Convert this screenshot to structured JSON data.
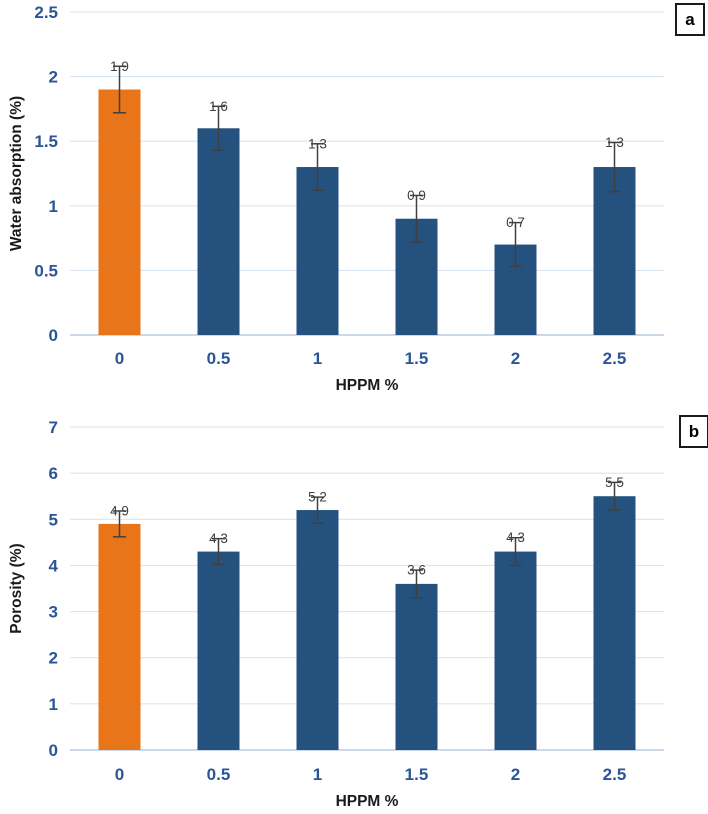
{
  "figure": {
    "description": "Two stacked vertical bar charts with error bars and data labels",
    "background": "#FFFFFF"
  },
  "colors": {
    "bar_blue": "#24517E",
    "bar_orange": "#E8751A",
    "axis_text_blue": "#2B5597",
    "axis_title_black": "#1A1A1A",
    "gridline": "#D9E5F3",
    "axis_line": "#B8CCE4",
    "data_label": "#3F3F3F",
    "error_bar": "#404040",
    "panel_border": "#1A1A1A",
    "panel_letter": "#000000"
  },
  "chart_data": [
    {
      "type": "bar",
      "panel_label": "a",
      "categories": [
        "0",
        "0.5",
        "1",
        "1.5",
        "2",
        "2.5"
      ],
      "values": [
        1.9,
        1.6,
        1.3,
        0.9,
        0.7,
        1.3
      ],
      "data_labels": [
        "1.9",
        "1.6",
        "1.3",
        "0.9",
        "0.7",
        "1.3"
      ],
      "error_bars": [
        0.18,
        0.17,
        0.18,
        0.18,
        0.17,
        0.19
      ],
      "highlight_index": 0,
      "xlabel": "HPPM %",
      "ylabel": "Water absorption (%)",
      "ylim": [
        0,
        2.5
      ],
      "yticks": [
        "0",
        "0.5",
        "1",
        "1.5",
        "2",
        "2.5"
      ],
      "grid": "horizontal",
      "legend": "none"
    },
    {
      "type": "bar",
      "panel_label": "b",
      "categories": [
        "0",
        "0.5",
        "1",
        "1.5",
        "2",
        "2.5"
      ],
      "values": [
        4.9,
        4.3,
        5.2,
        3.6,
        4.3,
        5.5
      ],
      "data_labels": [
        "4.9",
        "4.3",
        "5.2",
        "3.6",
        "4.3",
        "5.5"
      ],
      "error_bars": [
        0.28,
        0.28,
        0.28,
        0.3,
        0.3,
        0.3
      ],
      "highlight_index": 0,
      "xlabel": "HPPM %",
      "ylabel": "Porosity (%)",
      "ylim": [
        0,
        7
      ],
      "yticks": [
        "0",
        "1",
        "2",
        "3",
        "4",
        "5",
        "6",
        "7"
      ],
      "grid": "horizontal",
      "legend": "none"
    }
  ]
}
